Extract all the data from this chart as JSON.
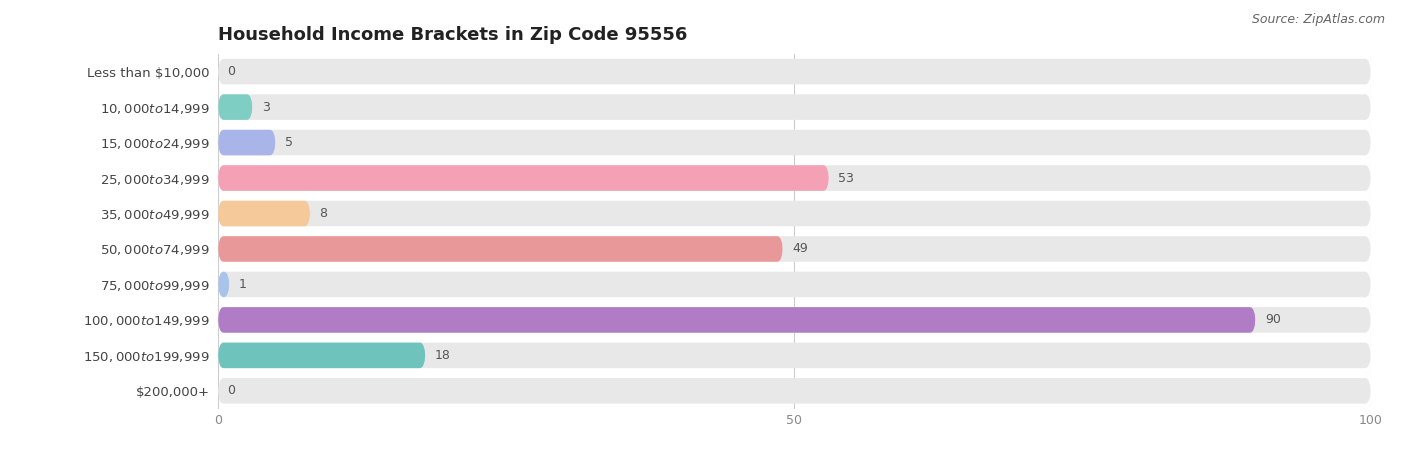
{
  "title": "Household Income Brackets in Zip Code 95556",
  "source": "Source: ZipAtlas.com",
  "categories": [
    "Less than $10,000",
    "$10,000 to $14,999",
    "$15,000 to $24,999",
    "$25,000 to $34,999",
    "$35,000 to $49,999",
    "$50,000 to $74,999",
    "$75,000 to $99,999",
    "$100,000 to $149,999",
    "$150,000 to $199,999",
    "$200,000+"
  ],
  "values": [
    0,
    3,
    5,
    53,
    8,
    49,
    1,
    90,
    18,
    0
  ],
  "bar_colors": [
    "#c9aed6",
    "#7ecec4",
    "#a9b4e8",
    "#f4a0b5",
    "#f5c99a",
    "#e89898",
    "#a8c4e8",
    "#b07cc6",
    "#6ec4bc",
    "#b8c4f0"
  ],
  "bar_bg_color": "#e8e8e8",
  "xlim": [
    0,
    100
  ],
  "xticks": [
    0,
    50,
    100
  ],
  "title_fontsize": 13,
  "label_fontsize": 9.5,
  "value_fontsize": 9,
  "source_fontsize": 9,
  "title_color": "#222222",
  "label_color": "#444444",
  "value_color": "#555555",
  "source_color": "#666666",
  "grid_color": "#cccccc"
}
